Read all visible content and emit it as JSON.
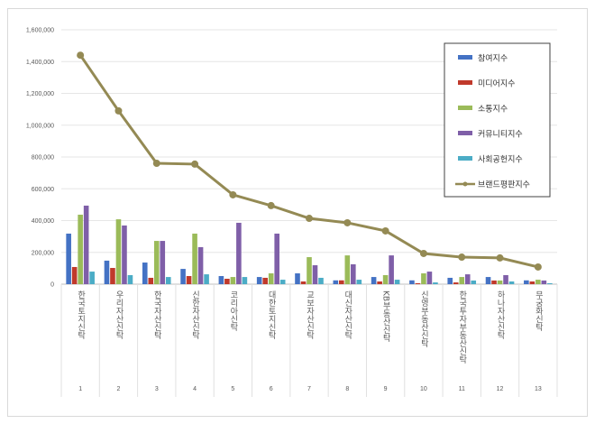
{
  "chart_data": {
    "type": "bar+line",
    "title": "",
    "xlabel": "",
    "ylabel": "",
    "ylim": [
      0,
      1600000
    ],
    "yticks": [
      "0",
      "200,000",
      "400,000",
      "600,000",
      "800,000",
      "1,000,000",
      "1,200,000",
      "1,400,000",
      "1,600,000"
    ],
    "ytick_values": [
      0,
      200000,
      400000,
      600000,
      800000,
      1000000,
      1200000,
      1400000,
      1600000
    ],
    "grid": true,
    "legend_position": "top-right",
    "categories": [
      "한국토지신탁",
      "우리자산신탁",
      "한국자산신탁",
      "신한자산신탁",
      "코리아신탁",
      "대한토지신탁",
      "교보자산신탁",
      "대신자산신탁",
      "KB부동산신탁",
      "신영부동산신탁",
      "한국투자부동산신탁",
      "하나자산신탁",
      "무궁화신탁"
    ],
    "ranks": [
      "1",
      "2",
      "3",
      "4",
      "5",
      "6",
      "7",
      "8",
      "9",
      "10",
      "11",
      "12",
      "13"
    ],
    "series": [
      {
        "name": "참여지수",
        "type": "bar",
        "color": "#4472c4",
        "values": [
          318000,
          148000,
          136000,
          96000,
          51000,
          45000,
          68000,
          24000,
          45000,
          24000,
          40000,
          45000,
          24000
        ]
      },
      {
        "name": "미디어지수",
        "type": "bar",
        "color": "#c0392b",
        "values": [
          108000,
          102000,
          40000,
          51000,
          34000,
          40000,
          17000,
          24000,
          17000,
          6000,
          11000,
          23000,
          17000
        ]
      },
      {
        "name": "소통지수",
        "type": "bar",
        "color": "#9bbb59",
        "values": [
          437000,
          408000,
          272000,
          318000,
          45000,
          68000,
          170000,
          181000,
          57000,
          68000,
          45000,
          23000,
          28000
        ]
      },
      {
        "name": "커뮤니티지수",
        "type": "bar",
        "color": "#7f5fa8",
        "values": [
          494000,
          369000,
          272000,
          233000,
          386000,
          318000,
          119000,
          125000,
          181000,
          79000,
          62000,
          57000,
          23000
        ]
      },
      {
        "name": "사회공헌지수",
        "type": "bar",
        "color": "#4bacc6",
        "values": [
          79000,
          57000,
          45000,
          62000,
          45000,
          28000,
          40000,
          28000,
          28000,
          11000,
          23000,
          17000,
          6000
        ]
      },
      {
        "name": "브랜드평판지수",
        "type": "line",
        "color": "#948a54",
        "values": [
          1440000,
          1090000,
          760000,
          755000,
          562000,
          494000,
          414000,
          386000,
          335000,
          193000,
          170000,
          165000,
          108000
        ]
      }
    ]
  }
}
